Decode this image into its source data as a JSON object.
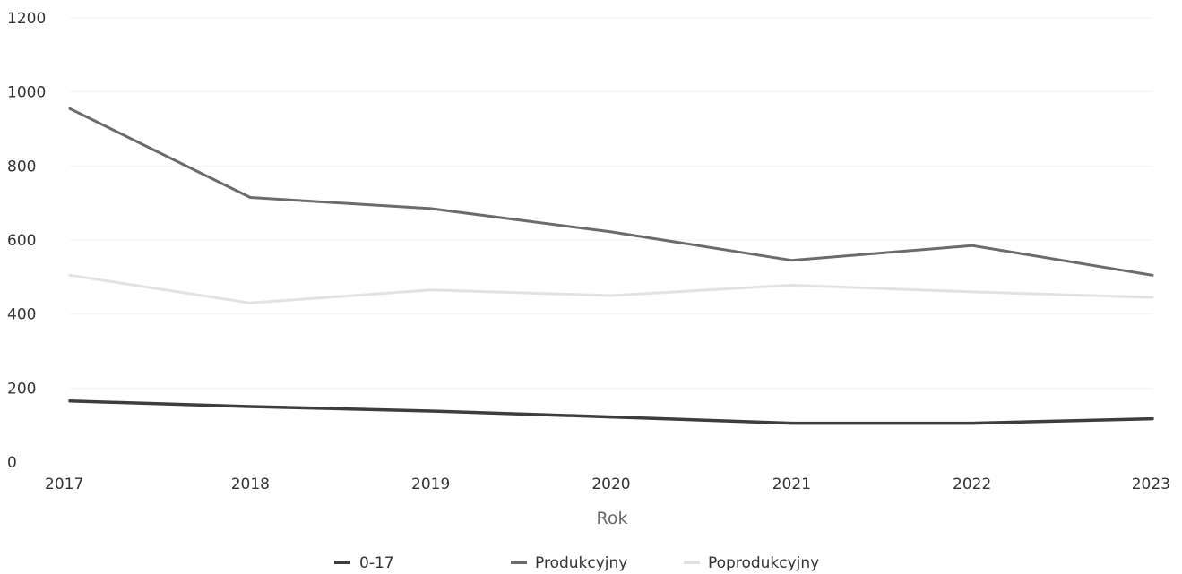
{
  "chart_data": {
    "type": "line",
    "title": "",
    "xlabel": "Rok",
    "ylabel": "",
    "x": [
      "2017",
      "2018",
      "2019",
      "2020",
      "2021",
      "2022",
      "2023"
    ],
    "ylim": [
      0,
      1200
    ],
    "yticks": [
      "0",
      "200",
      "400",
      "600",
      "800",
      "1000",
      "1200"
    ],
    "grid": true,
    "legend_position": "bottom",
    "series": [
      {
        "name": "0-17",
        "color": "#3d3d3d",
        "values": [
          165,
          150,
          138,
          122,
          105,
          105,
          117
        ]
      },
      {
        "name": "Produkcyjny",
        "color": "#6b6b6b",
        "values": [
          955,
          715,
          685,
          622,
          545,
          585,
          505
        ]
      },
      {
        "name": "Poprodukcyjny",
        "color": "#e2e2e2",
        "values": [
          505,
          430,
          465,
          450,
          478,
          460,
          445
        ]
      }
    ]
  }
}
